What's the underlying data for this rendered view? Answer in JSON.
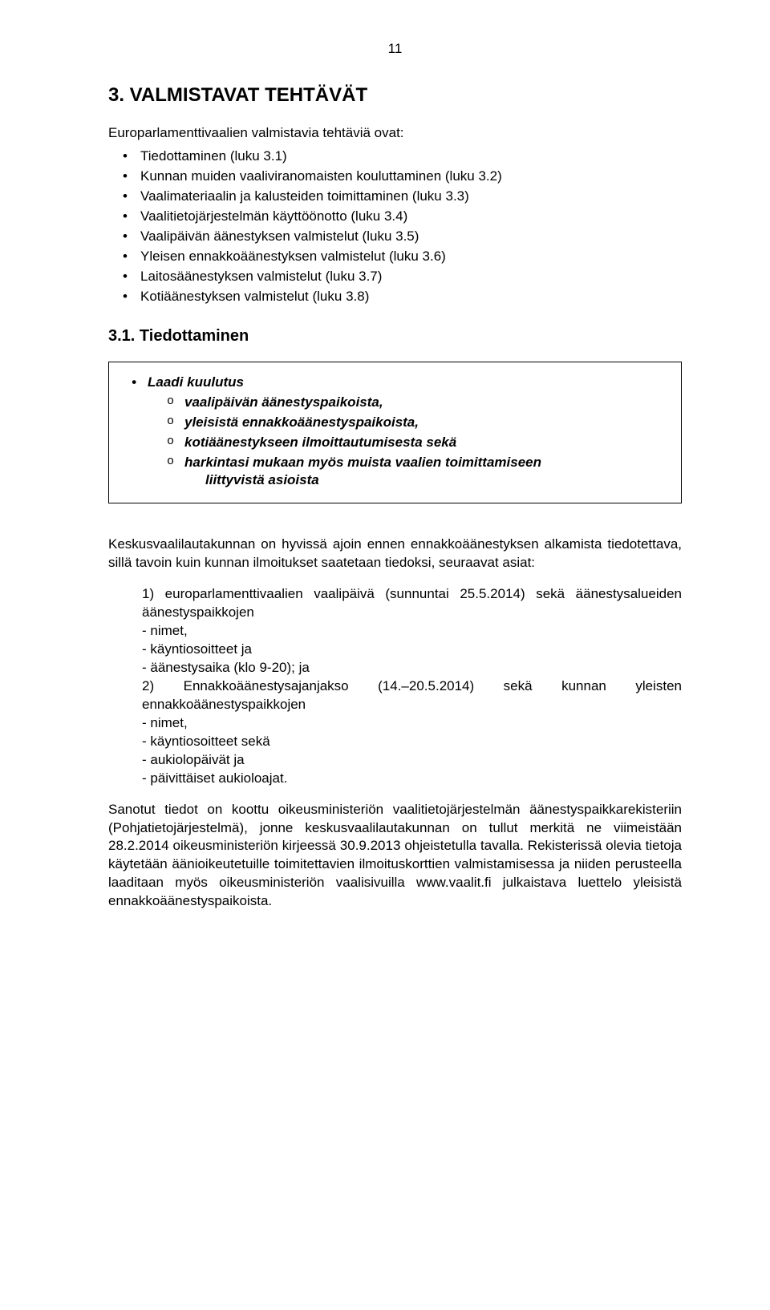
{
  "page_number": "11",
  "heading": "3. VALMISTAVAT TEHTÄVÄT",
  "intro": "Europarlamenttivaalien valmistavia tehtäviä ovat:",
  "tasks": [
    "Tiedottaminen (luku 3.1)",
    "Kunnan muiden vaaliviranomaisten kouluttaminen (luku 3.2)",
    "Vaalimateriaalin ja kalusteiden toimittaminen (luku 3.3)",
    "Vaalitietojärjestelmän käyttöönotto (luku 3.4)",
    "Vaalipäivän äänestyksen valmistelut (luku 3.5)",
    "Yleisen ennakkoäänestyksen valmistelut (luku 3.6)",
    "Laitosäänestyksen valmistelut (luku 3.7)",
    "Kotiäänestyksen valmistelut (luku 3.8)"
  ],
  "subheading": "3.1. Tiedottaminen",
  "box": {
    "lead": "Laadi kuulutus",
    "items": [
      "vaalipäivän äänestyspaikoista,",
      "yleisistä ennakkoäänestyspaikoista,",
      "kotiäänestykseen ilmoittautumisesta sekä",
      "harkintasi mukaan myös muista vaalien toimittamiseen"
    ],
    "cont": "liittyvistä asioista"
  },
  "para1": "Keskusvaalilautakunnan on hyvissä ajoin ennen ennakkoäänestyksen alkamista tiedotettava, sillä tavoin kuin kunnan ilmoitukset saatetaan tiedoksi, seuraavat asiat:",
  "block": {
    "l1": "1) europarlamenttivaalien vaalipäivä (sunnuntai 25.5.2014) sekä äänestysalueiden äänestyspaikkojen",
    "l2": "- nimet,",
    "l3": "- käyntiosoitteet ja",
    "l4": "- äänestysaika (klo 9-20); ja",
    "l5": "2) Ennakkoäänestysajanjakso (14.–20.5.2014) sekä kunnan yleisten ennakkoäänestyspaikkojen",
    "l6": "- nimet,",
    "l7": "- käyntiosoitteet sekä",
    "l8": "- aukiolopäivät ja",
    "l9": "- päivittäiset aukioloajat."
  },
  "para2": "Sanotut tiedot on koottu oikeusministeriön vaalitietojärjestelmän äänestyspaikkarekisteriin (Pohjatietojärjestelmä), jonne keskusvaalilautakunnan on tullut merkitä ne viimeistään 28.2.2014 oikeusministeriön kirjeessä 30.9.2013 ohjeistetulla tavalla. Rekisterissä olevia tietoja käytetään äänioikeutetuille toimitettavien ilmoituskorttien valmistamisessa ja niiden perusteella laaditaan myös oikeusministeriön vaalisivuilla www.vaalit.fi julkaistava luettelo yleisistä ennakkoäänestyspaikoista."
}
